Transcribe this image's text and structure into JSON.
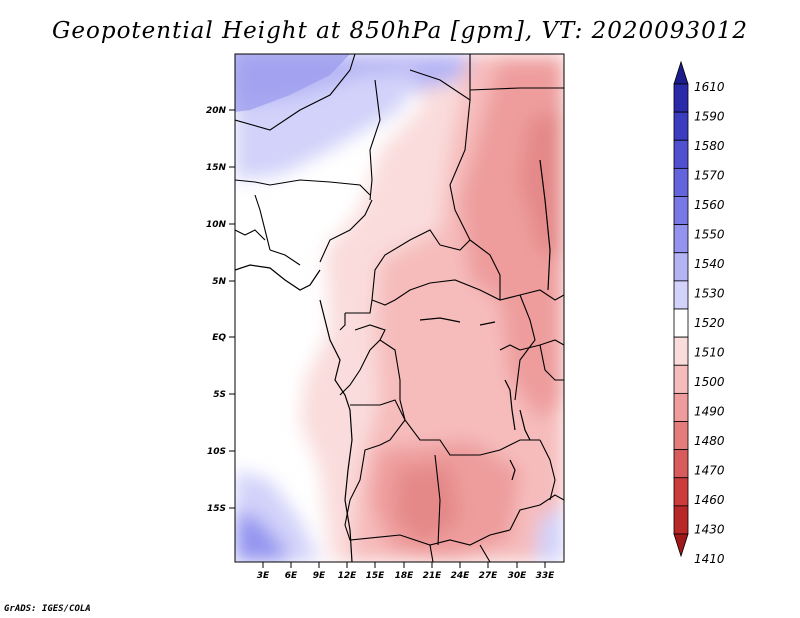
{
  "title": "Geopotential Height at 850hPa [gpm], VT: 2020093012",
  "credit": "GrADS: IGES/COLA",
  "map": {
    "lat_labels": [
      "20N",
      "15N",
      "10N",
      "5N",
      "EQ",
      "5S",
      "10S",
      "15S"
    ],
    "lon_labels": [
      "3E",
      "6E",
      "9E",
      "12E",
      "15E",
      "18E",
      "21E",
      "24E",
      "27E",
      "30E",
      "33E"
    ]
  },
  "colorbar": {
    "labels": [
      "1610",
      "1590",
      "1580",
      "1570",
      "1560",
      "1550",
      "1540",
      "1530",
      "1520",
      "1510",
      "1500",
      "1490",
      "1480",
      "1470",
      "1460",
      "1430",
      "1410"
    ],
    "colors": [
      "#1c1c8c",
      "#2a2aa8",
      "#3c3cc0",
      "#5050d0",
      "#6464dc",
      "#7878e6",
      "#9494f0",
      "#b4b4f4",
      "#d2d2fa",
      "#ffffff",
      "#fadcdc",
      "#f6bcbc",
      "#ee9c9c",
      "#e47c7c",
      "#d85c5c",
      "#cc3c3c",
      "#b82828",
      "#a01818"
    ]
  }
}
